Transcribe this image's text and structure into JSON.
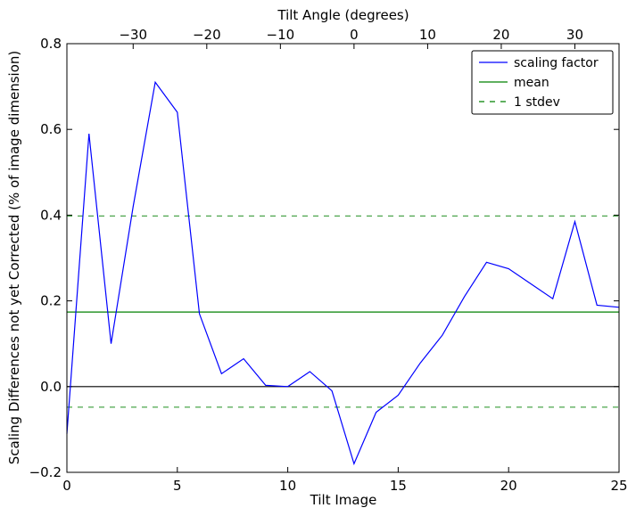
{
  "chart_data": {
    "type": "line",
    "xlabel": "Tilt Image",
    "ylabel": "Scaling Differences not yet Corrected (% of image dimension)",
    "top_xlabel": "Tilt Angle (degrees)",
    "xlim": [
      0,
      25
    ],
    "ylim": [
      -0.2,
      0.8
    ],
    "x_ticks": [
      0,
      5,
      10,
      15,
      20,
      25
    ],
    "y_ticks": [
      -0.2,
      0.0,
      0.2,
      0.4,
      0.6,
      0.8
    ],
    "x_tick_labels": [
      "0",
      "5",
      "10",
      "15",
      "20",
      "25"
    ],
    "y_tick_labels": [
      "−0.2",
      "0.0",
      "0.2",
      "0.4",
      "0.6",
      "0.8"
    ],
    "top_xlim": [
      -39,
      36
    ],
    "top_ticks": [
      -30,
      -20,
      -10,
      0,
      10,
      20,
      30
    ],
    "top_tick_labels": [
      "−30",
      "−20",
      "−10",
      "0",
      "10",
      "20",
      "30"
    ],
    "zero_line": 0.0,
    "grid": false,
    "legend_position": "top-right",
    "series": [
      {
        "name": "scaling factor",
        "color": "#0000ff",
        "style": "solid",
        "x": [
          0,
          1,
          2,
          3,
          4,
          5,
          6,
          7,
          8,
          9,
          10,
          11,
          12,
          13,
          14,
          15,
          16,
          17,
          18,
          19,
          20,
          21,
          22,
          23,
          24,
          25
        ],
        "y": [
          -0.11,
          0.59,
          0.1,
          0.42,
          0.71,
          0.64,
          0.17,
          0.03,
          0.065,
          0.003,
          0.0,
          0.035,
          -0.01,
          -0.18,
          -0.06,
          -0.02,
          0.055,
          0.12,
          0.21,
          0.29,
          0.275,
          0.24,
          0.205,
          0.385,
          0.19,
          0.185
        ]
      },
      {
        "name": "mean",
        "color": "#008000",
        "style": "solid",
        "y_const": 0.174
      },
      {
        "name": "1 stdev",
        "color": "#008000",
        "style": "dashed",
        "y_const": [
          0.398,
          -0.048
        ]
      }
    ]
  }
}
